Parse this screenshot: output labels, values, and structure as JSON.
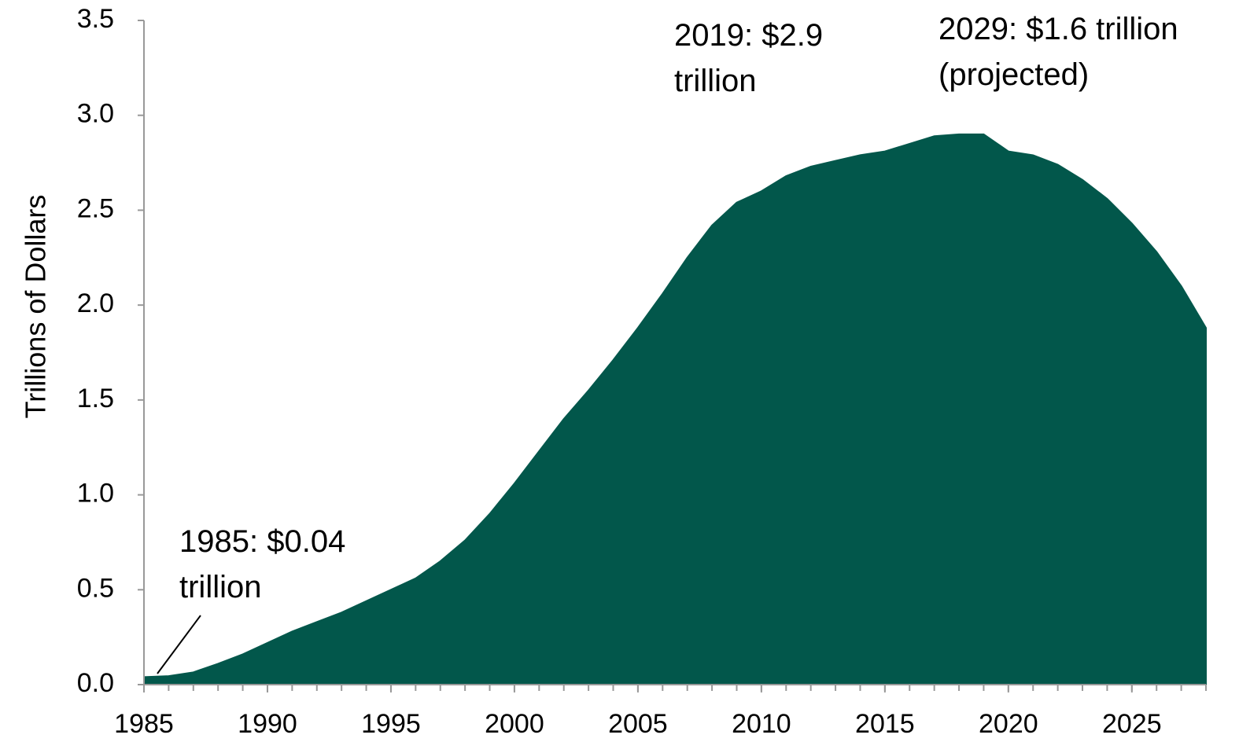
{
  "chart_data": {
    "type": "area",
    "y_label": "Trillions of Dollars",
    "x": [
      1985,
      1986,
      1987,
      1988,
      1989,
      1990,
      1991,
      1992,
      1993,
      1994,
      1995,
      1996,
      1997,
      1998,
      1999,
      2000,
      2001,
      2002,
      2003,
      2004,
      2005,
      2006,
      2007,
      2008,
      2009,
      2010,
      2011,
      2012,
      2013,
      2014,
      2015,
      2016,
      2017,
      2018,
      2019,
      2020,
      2021,
      2022,
      2023,
      2024,
      2025,
      2026,
      2027,
      2028
    ],
    "values": [
      0.04,
      0.045,
      0.065,
      0.11,
      0.16,
      0.22,
      0.28,
      0.33,
      0.38,
      0.44,
      0.5,
      0.56,
      0.65,
      0.76,
      0.9,
      1.06,
      1.23,
      1.4,
      1.55,
      1.71,
      1.88,
      2.06,
      2.25,
      2.42,
      2.54,
      2.6,
      2.68,
      2.73,
      2.76,
      2.79,
      2.81,
      2.85,
      2.89,
      2.9,
      2.9,
      2.81,
      2.79,
      2.74,
      2.66,
      2.56,
      2.43,
      2.28,
      2.1,
      1.88
    ],
    "color": "#02574b",
    "xlim": [
      1985,
      2028
    ],
    "xticks": [
      1985,
      1990,
      1995,
      2000,
      2005,
      2010,
      2015,
      2020,
      2025
    ],
    "ylim": [
      0,
      3.5
    ],
    "yticks": [
      {
        "value": 0,
        "label": "0.0"
      },
      0.5,
      {
        "value": 1,
        "label": "1.0"
      },
      1.5,
      {
        "value": 2,
        "label": "2.0"
      },
      2.5,
      {
        "value": 3,
        "label": "3.0"
      },
      3.5
    ],
    "grid": false,
    "annotations": [
      {
        "lines": [
          "1985: $0.04",
          "trillion"
        ]
      },
      {
        "lines": [
          "2019: $2.9",
          "trillion"
        ]
      },
      {
        "lines": [
          "2029: $1.6 trillion",
          "(projected)"
        ]
      }
    ]
  }
}
